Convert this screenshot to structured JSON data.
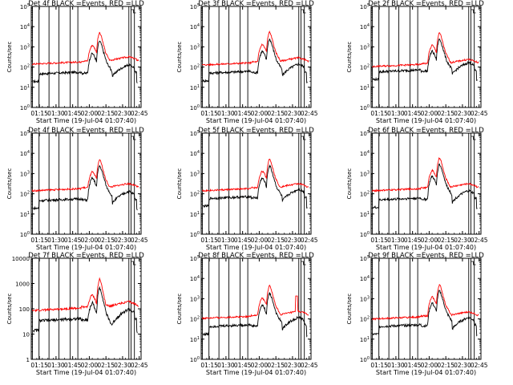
{
  "colors": {
    "events": "#000000",
    "lld": "#ff0000",
    "frame": "#000000",
    "background": "#ffffff"
  },
  "chart_data": [
    {
      "type": "line",
      "panel": "row1-col1",
      "title": "Det 4f  BLACK =Events, RED =LLD",
      "xlabel": "Start Time (19-Jul-04 01:07:40)",
      "ylabel": "Counts/sec",
      "yscale": "log",
      "ylim": [
        1,
        100000
      ],
      "ytick_labels": [
        "10^0",
        "10^1",
        "10^2",
        "10^3",
        "10^4",
        "10^5"
      ],
      "xlim_min_after_start": [
        0,
        99
      ],
      "xtick_labels": [
        "01:15",
        "01:30",
        "01:45",
        "02:00",
        "02:15",
        "02:30",
        "02:45"
      ],
      "markers_min": [
        1,
        7,
        16,
        25,
        35,
        42,
        88,
        90,
        93
      ],
      "lld_level": 200,
      "evt_level": 55,
      "peak_lld": 5000,
      "peak_evt": 2000,
      "spike": false,
      "series": [
        {
          "name": "Events",
          "color": "black"
        },
        {
          "name": "LLD",
          "color": "red"
        }
      ]
    },
    {
      "type": "line",
      "panel": "row1-col2",
      "title": "Det 3f  BLACK =Events, RED =LLD",
      "xlabel": "Start Time (19-Jul-04 01:07:40)",
      "ylabel": "Counts/sec",
      "yscale": "log",
      "ylim": [
        1,
        100000
      ],
      "ytick_labels": [
        "10^0",
        "10^1",
        "10^2",
        "10^3",
        "10^4",
        "10^5"
      ],
      "xlim_min_after_start": [
        0,
        99
      ],
      "xtick_labels": [
        "01:15",
        "01:30",
        "01:45",
        "02:00",
        "02:15",
        "02:30",
        "02:45"
      ],
      "markers_min": [
        1,
        7,
        16,
        25,
        35,
        42,
        88,
        90,
        93
      ],
      "lld_level": 180,
      "evt_level": 60,
      "peak_lld": 5500,
      "peak_evt": 2500,
      "spike": false,
      "series": [
        {
          "name": "Events",
          "color": "black"
        },
        {
          "name": "LLD",
          "color": "red"
        }
      ]
    },
    {
      "type": "line",
      "panel": "row1-col3",
      "title": "Det 2f  BLACK =Events, RED =LLD",
      "xlabel": "Start Time (19-Jul-04 01:07:40)",
      "ylabel": "Counts/sec",
      "yscale": "log",
      "ylim": [
        1,
        100000
      ],
      "ytick_labels": [
        "10^0",
        "10^1",
        "10^2",
        "10^3",
        "10^4",
        "10^5"
      ],
      "xlim_min_after_start": [
        0,
        99
      ],
      "xtick_labels": [
        "01:15",
        "01:30",
        "01:45",
        "02:00",
        "02:15",
        "02:30",
        "02:45"
      ],
      "markers_min": [
        1,
        7,
        16,
        25,
        35,
        42,
        88,
        90,
        93
      ],
      "lld_level": 150,
      "evt_level": 70,
      "peak_lld": 5000,
      "peak_evt": 2500,
      "spike": false,
      "series": [
        {
          "name": "Events",
          "color": "black"
        },
        {
          "name": "LLD",
          "color": "red"
        }
      ]
    },
    {
      "type": "line",
      "panel": "row2-col1",
      "title": "Det 4f  BLACK =Events, RED =LLD",
      "xlabel": "Start Time (19-Jul-04 01:07:40)",
      "ylabel": "Counts/sec",
      "yscale": "log",
      "ylim": [
        1,
        100000
      ],
      "ytick_labels": [
        "10^0",
        "10^1",
        "10^2",
        "10^3",
        "10^4",
        "10^5"
      ],
      "xlim_min_after_start": [
        0,
        99
      ],
      "xtick_labels": [
        "01:15",
        "01:30",
        "01:45",
        "02:00",
        "02:15",
        "02:30",
        "02:45"
      ],
      "markers_min": [
        1,
        7,
        16,
        25,
        35,
        42,
        88,
        90,
        93
      ],
      "lld_level": 200,
      "evt_level": 55,
      "peak_lld": 5000,
      "peak_evt": 2500,
      "spike": false,
      "series": [
        {
          "name": "Events",
          "color": "black"
        },
        {
          "name": "LLD",
          "color": "red"
        }
      ]
    },
    {
      "type": "line",
      "panel": "row2-col2",
      "title": "Det 5f  BLACK =Events, RED =LLD",
      "xlabel": "Start Time (19-Jul-04 01:07:40)",
      "ylabel": "Counts/sec",
      "yscale": "log",
      "ylim": [
        1,
        100000
      ],
      "ytick_labels": [
        "10^0",
        "10^1",
        "10^2",
        "10^3",
        "10^4",
        "10^5"
      ],
      "xlim_min_after_start": [
        0,
        99
      ],
      "xtick_labels": [
        "01:15",
        "01:30",
        "01:45",
        "02:00",
        "02:15",
        "02:30",
        "02:45"
      ],
      "markers_min": [
        1,
        7,
        16,
        25,
        35,
        42,
        88,
        90,
        93
      ],
      "lld_level": 200,
      "evt_level": 70,
      "peak_lld": 5500,
      "peak_evt": 2500,
      "spike": false,
      "series": [
        {
          "name": "Events",
          "color": "black"
        },
        {
          "name": "LLD",
          "color": "red"
        }
      ]
    },
    {
      "type": "line",
      "panel": "row2-col3",
      "title": "Det 6f  BLACK =Events, RED =LLD",
      "xlabel": "Start Time (19-Jul-04 01:07:40)",
      "ylabel": "Counts/sec",
      "yscale": "log",
      "ylim": [
        1,
        100000
      ],
      "ytick_labels": [
        "10^0",
        "10^1",
        "10^2",
        "10^3",
        "10^4",
        "10^5"
      ],
      "xlim_min_after_start": [
        0,
        99
      ],
      "xtick_labels": [
        "01:15",
        "01:30",
        "01:45",
        "02:00",
        "02:15",
        "02:30",
        "02:45"
      ],
      "markers_min": [
        1,
        7,
        16,
        25,
        35,
        42,
        88,
        90,
        93
      ],
      "lld_level": 200,
      "evt_level": 60,
      "peak_lld": 6000,
      "peak_evt": 3000,
      "spike": false,
      "series": [
        {
          "name": "Events",
          "color": "black"
        },
        {
          "name": "LLD",
          "color": "red"
        }
      ]
    },
    {
      "type": "line",
      "panel": "row3-col1",
      "title": "Det 7f  BLACK =Events, RED =LLD",
      "xlabel": "Start Time (19-Jul-04 01:07:40)",
      "ylabel": "Counts/sec",
      "yscale": "log",
      "ylim": [
        1,
        10000
      ],
      "ytick_labels": [
        "1",
        "10",
        "100",
        "1000",
        "10000"
      ],
      "xlim_min_after_start": [
        0,
        99
      ],
      "xtick_labels": [
        "01:15",
        "01:30",
        "01:45",
        "02:00",
        "02:15",
        "02:30",
        "02:45"
      ],
      "markers_min": [
        1,
        7,
        16,
        25,
        35,
        42,
        88,
        90,
        93
      ],
      "lld_level": 120,
      "evt_level": 40,
      "peak_lld": 1500,
      "peak_evt": 700,
      "spike": false,
      "series": [
        {
          "name": "Events",
          "color": "black"
        },
        {
          "name": "LLD",
          "color": "red"
        }
      ]
    },
    {
      "type": "line",
      "panel": "row3-col2",
      "title": "Det 8f  BLACK =Events, RED =LLD",
      "xlabel": "Start Time (19-Jul-04 01:07:40)",
      "ylabel": "Counts/sec",
      "yscale": "log",
      "ylim": [
        1,
        100000
      ],
      "ytick_labels": [
        "10^0",
        "10^1",
        "10^2",
        "10^3",
        "10^4",
        "10^5"
      ],
      "xlim_min_after_start": [
        0,
        99
      ],
      "xtick_labels": [
        "01:15",
        "01:30",
        "01:45",
        "02:00",
        "02:15",
        "02:30",
        "02:45"
      ],
      "markers_min": [
        1,
        7,
        16,
        25,
        35,
        42,
        88,
        90,
        93
      ],
      "lld_level": 150,
      "evt_level": 50,
      "peak_lld": 4500,
      "peak_evt": 2000,
      "spike": true,
      "series": [
        {
          "name": "Events",
          "color": "black"
        },
        {
          "name": "LLD",
          "color": "red"
        }
      ]
    },
    {
      "type": "line",
      "panel": "row3-col3",
      "title": "Det 9f  BLACK =Events, RED =LLD",
      "xlabel": "Start Time (19-Jul-04 01:07:40)",
      "ylabel": "Counts/sec",
      "yscale": "log",
      "ylim": [
        1,
        100000
      ],
      "ytick_labels": [
        "10^0",
        "10^1",
        "10^2",
        "10^3",
        "10^4",
        "10^5"
      ],
      "xlim_min_after_start": [
        0,
        99
      ],
      "xtick_labels": [
        "01:15",
        "01:30",
        "01:45",
        "02:00",
        "02:15",
        "02:30",
        "02:45"
      ],
      "markers_min": [
        1,
        7,
        16,
        25,
        35,
        42,
        88,
        90,
        93
      ],
      "lld_level": 140,
      "evt_level": 50,
      "peak_lld": 5000,
      "peak_evt": 2500,
      "spike": false,
      "series": [
        {
          "name": "Events",
          "color": "black"
        },
        {
          "name": "LLD",
          "color": "red"
        }
      ]
    }
  ]
}
